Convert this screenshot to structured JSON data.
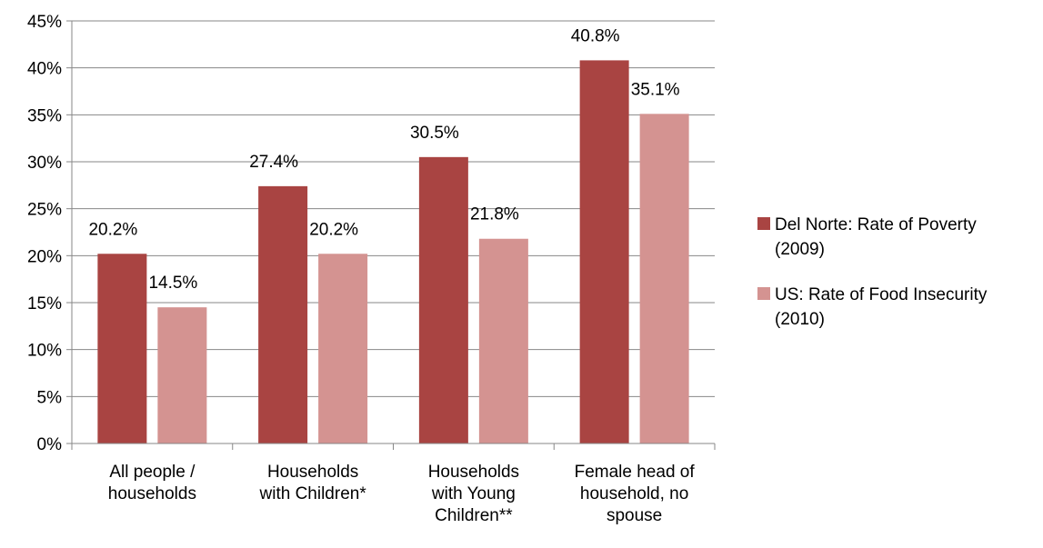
{
  "chart_data": {
    "type": "bar",
    "title": "",
    "xlabel": "",
    "ylabel": "",
    "ylim": [
      0,
      45
    ],
    "ytick_step": 5,
    "grid": true,
    "legend_position": "right",
    "categories": [
      [
        "All people /",
        "households"
      ],
      [
        "Households",
        "with Children*"
      ],
      [
        "Households",
        "with Young",
        "Children**"
      ],
      [
        "Female head of",
        "household, no",
        "spouse"
      ]
    ],
    "series": [
      {
        "name": "Del Norte: Rate of Poverty (2009)",
        "legend_lines": [
          "Del Norte: Rate of Poverty",
          "(2009)"
        ],
        "color": "#A94442",
        "values": [
          20.2,
          27.4,
          30.5,
          40.8
        ]
      },
      {
        "name": "US: Rate of Food Insecurity (2010)",
        "legend_lines": [
          "US: Rate of Food Insecurity",
          "(2010)"
        ],
        "color": "#D49391",
        "values": [
          14.5,
          20.2,
          21.8,
          35.1
        ]
      }
    ],
    "value_suffix": "%"
  }
}
